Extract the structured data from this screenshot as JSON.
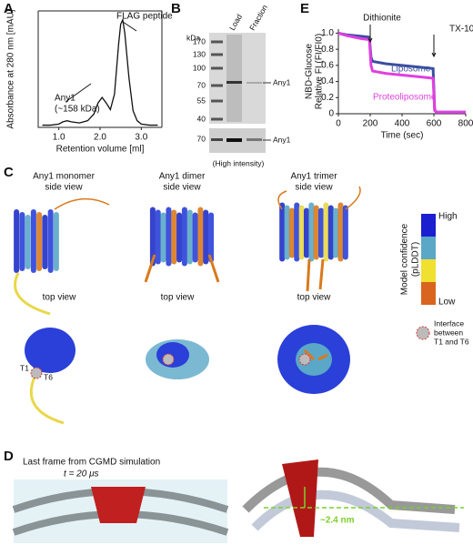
{
  "panel_labels": [
    "A",
    "B",
    "C",
    "D",
    "E"
  ],
  "chart_data": [
    {
      "type": "line",
      "ylabel": "Absorbance at 280 nm [mAU]",
      "xlabel": "Retention volume [ml]",
      "x": [
        0.6,
        0.8,
        1.0,
        1.1,
        1.2,
        1.3,
        1.5,
        1.7,
        1.85,
        1.95,
        2.05,
        2.15,
        2.25,
        2.35,
        2.45,
        2.5,
        2.55,
        2.6,
        2.7,
        2.8,
        2.9,
        3.0,
        3.2,
        3.4
      ],
      "values": [
        0.02,
        0.02,
        0.03,
        0.05,
        0.06,
        0.05,
        0.04,
        0.06,
        0.12,
        0.22,
        0.27,
        0.22,
        0.16,
        0.3,
        0.75,
        0.93,
        0.97,
        0.85,
        0.45,
        0.15,
        0.06,
        0.03,
        0.02,
        0.02
      ],
      "color": "#111111",
      "xlim": [
        0.5,
        3.5
      ],
      "ylim": [
        0,
        1.05
      ],
      "xticks": [
        {
          "value": 1,
          "label": "1.0"
        },
        {
          "value": 2,
          "label": "2.0"
        },
        {
          "value": 3,
          "label": "3.0"
        }
      ],
      "annotations": [
        "FLAG peptide",
        "Any1",
        "(~158 kDa)"
      ]
    },
    {
      "type": "line",
      "ylabel": [
        "NBD-Glucose",
        "Relative FI (FI/FI0)"
      ],
      "xlabel": "Time (sec)",
      "x": [
        0,
        50,
        100,
        150,
        195,
        205,
        215,
        300,
        400,
        500,
        595,
        605,
        615,
        700,
        800
      ],
      "series": [
        {
          "name": "Liposome",
          "color": "#3a4fa0",
          "values": [
            1.0,
            0.98,
            0.97,
            0.96,
            0.95,
            0.7,
            0.65,
            0.62,
            0.6,
            0.58,
            0.56,
            0.05,
            0.02,
            0.02,
            0.02
          ]
        },
        {
          "name": "Proteoliposome",
          "color": "#e040e0",
          "values": [
            1.0,
            0.97,
            0.95,
            0.93,
            0.92,
            0.6,
            0.53,
            0.5,
            0.48,
            0.46,
            0.44,
            0.04,
            0.02,
            0.02,
            0.02
          ]
        }
      ],
      "xlim": [
        0,
        800
      ],
      "ylim": [
        0,
        1.05
      ],
      "xticks": [
        0,
        200,
        400,
        600,
        800
      ],
      "yticks": [
        0,
        {
          "value": 0.2,
          "label": "0.2"
        },
        {
          "value": 0.4,
          "label": "0.4"
        },
        {
          "value": 0.6,
          "label": "0.6"
        },
        {
          "value": 0.8,
          "label": "0.8"
        },
        {
          "value": 1,
          "label": "1.0"
        }
      ],
      "annotations": [
        "Dithionite",
        "TX-100"
      ]
    }
  ],
  "gel": {
    "unit": "kDa",
    "lanes": [
      "Load",
      "Fraction"
    ],
    "ladder": [
      "170",
      "130",
      "100",
      "70",
      "55",
      "40"
    ],
    "band": "Any1",
    "lower_ladder": "70",
    "lower_band": "Any1",
    "lower_note": "(High intensity)"
  },
  "structures": {
    "titles": [
      [
        "Any1 monomer",
        "side view"
      ],
      [
        "Any1 dimer",
        "side view"
      ],
      [
        "Any1 trimer",
        "side view"
      ]
    ],
    "top": [
      "top view",
      "top view",
      "top view"
    ],
    "scale": {
      "high": "High",
      "low": "Low",
      "title": [
        "Model confidence",
        "(pLDDT)"
      ]
    },
    "interface": [
      "Interface",
      "between",
      "T1 and T6"
    ],
    "termini": [
      "T1",
      "T6"
    ]
  },
  "simulation": {
    "title": "Last frame from CGMD simulation",
    "time": "t = 20 μs",
    "distance": "~2.4 nm"
  }
}
